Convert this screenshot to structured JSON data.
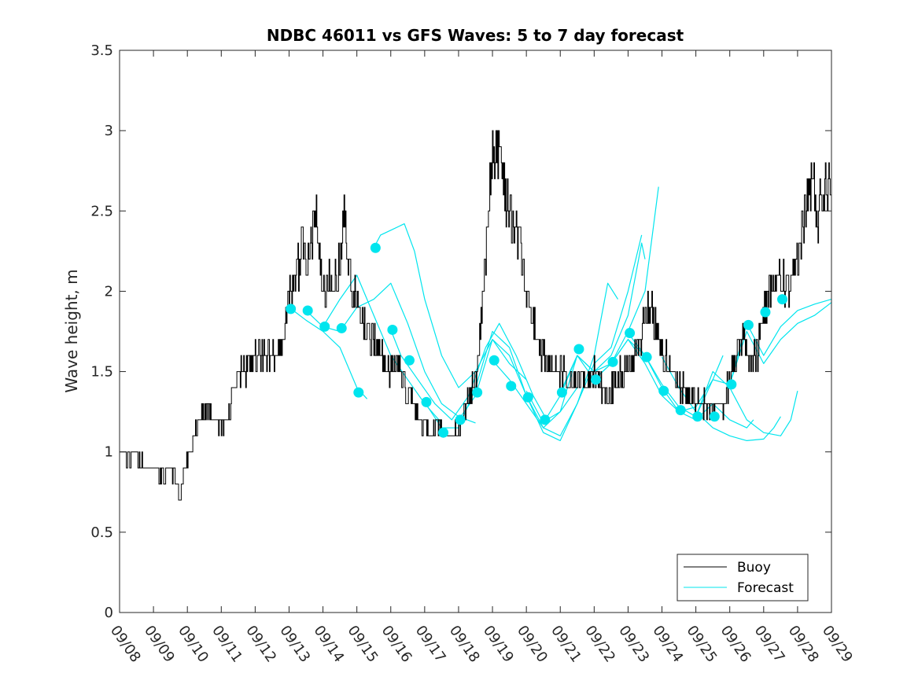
{
  "chart_data": {
    "type": "line",
    "title": "NDBC 46011 vs GFS Waves: 5 to 7 day forecast",
    "xlabel": "",
    "ylabel": "Wave height, m",
    "xlim": [
      0,
      21
    ],
    "ylim": [
      0,
      3.5
    ],
    "x_tick_labels": [
      "09/08",
      "09/09",
      "09/10",
      "09/11",
      "09/12",
      "09/13",
      "09/14",
      "09/15",
      "09/16",
      "09/17",
      "09/18",
      "09/19",
      "09/20",
      "09/21",
      "09/22",
      "09/23",
      "09/24",
      "09/25",
      "09/26",
      "09/27",
      "09/28",
      "09/29"
    ],
    "y_ticks": [
      0,
      0.5,
      1,
      1.5,
      2,
      2.5,
      3,
      3.5
    ],
    "y_tick_labels": [
      "0",
      "0.5",
      "1",
      "1.5",
      "2",
      "2.5",
      "3",
      "3.5"
    ],
    "legend": {
      "position": "bottom-right",
      "entries": [
        "Buoy",
        "Forecast"
      ]
    },
    "colors": {
      "buoy": "#000000",
      "forecast": "#00e5ee",
      "axis": "#262626"
    },
    "buoy_keypoints": [
      [
        0.0,
        1.0
      ],
      [
        0.2,
        0.95
      ],
      [
        0.4,
        1.0
      ],
      [
        0.6,
        0.92
      ],
      [
        0.8,
        0.9
      ],
      [
        1.0,
        0.9
      ],
      [
        1.2,
        0.85
      ],
      [
        1.4,
        0.9
      ],
      [
        1.6,
        0.85
      ],
      [
        1.75,
        0.75
      ],
      [
        1.9,
        0.85
      ],
      [
        2.0,
        0.95
      ],
      [
        2.2,
        1.1
      ],
      [
        2.4,
        1.25
      ],
      [
        2.6,
        1.25
      ],
      [
        2.8,
        1.22
      ],
      [
        3.0,
        1.18
      ],
      [
        3.2,
        1.2
      ],
      [
        3.4,
        1.4
      ],
      [
        3.6,
        1.5
      ],
      [
        3.8,
        1.52
      ],
      [
        4.0,
        1.6
      ],
      [
        4.2,
        1.6
      ],
      [
        4.4,
        1.62
      ],
      [
        4.6,
        1.62
      ],
      [
        4.8,
        1.7
      ],
      [
        5.0,
        2.0
      ],
      [
        5.2,
        2.1
      ],
      [
        5.4,
        2.3
      ],
      [
        5.6,
        2.2
      ],
      [
        5.8,
        2.45
      ],
      [
        6.0,
        2.0
      ],
      [
        6.2,
        2.1
      ],
      [
        6.4,
        2.05
      ],
      [
        6.6,
        2.45
      ],
      [
        6.8,
        2.1
      ],
      [
        7.0,
        1.9
      ],
      [
        7.2,
        1.85
      ],
      [
        7.4,
        1.7
      ],
      [
        7.6,
        1.65
      ],
      [
        7.8,
        1.55
      ],
      [
        8.0,
        1.5
      ],
      [
        8.2,
        1.55
      ],
      [
        8.4,
        1.4
      ],
      [
        8.6,
        1.35
      ],
      [
        8.8,
        1.2
      ],
      [
        9.0,
        1.15
      ],
      [
        9.2,
        1.1
      ],
      [
        9.4,
        1.15
      ],
      [
        9.6,
        1.05
      ],
      [
        9.8,
        1.1
      ],
      [
        10.0,
        1.15
      ],
      [
        10.2,
        1.25
      ],
      [
        10.4,
        1.4
      ],
      [
        10.6,
        1.6
      ],
      [
        10.8,
        2.2
      ],
      [
        11.0,
        2.9
      ],
      [
        11.2,
        2.85
      ],
      [
        11.4,
        2.6
      ],
      [
        11.6,
        2.45
      ],
      [
        11.8,
        2.3
      ],
      [
        12.0,
        2.0
      ],
      [
        12.2,
        1.8
      ],
      [
        12.4,
        1.65
      ],
      [
        12.6,
        1.55
      ],
      [
        12.8,
        1.5
      ],
      [
        13.0,
        1.5
      ],
      [
        13.2,
        1.45
      ],
      [
        13.4,
        1.4
      ],
      [
        13.6,
        1.45
      ],
      [
        13.8,
        1.4
      ],
      [
        14.0,
        1.5
      ],
      [
        14.2,
        1.4
      ],
      [
        14.4,
        1.35
      ],
      [
        14.6,
        1.45
      ],
      [
        14.8,
        1.5
      ],
      [
        15.0,
        1.55
      ],
      [
        15.2,
        1.6
      ],
      [
        15.4,
        1.75
      ],
      [
        15.6,
        1.95
      ],
      [
        15.8,
        1.8
      ],
      [
        16.0,
        1.6
      ],
      [
        16.2,
        1.55
      ],
      [
        16.4,
        1.45
      ],
      [
        16.6,
        1.4
      ],
      [
        16.8,
        1.35
      ],
      [
        17.0,
        1.3
      ],
      [
        17.2,
        1.3
      ],
      [
        17.4,
        1.25
      ],
      [
        17.6,
        1.25
      ],
      [
        17.8,
        1.3
      ],
      [
        18.0,
        1.45
      ],
      [
        18.2,
        1.6
      ],
      [
        18.4,
        1.7
      ],
      [
        18.6,
        1.55
      ],
      [
        18.8,
        1.6
      ],
      [
        19.0,
        1.9
      ],
      [
        19.2,
        2.0
      ],
      [
        19.4,
        2.1
      ],
      [
        19.6,
        2.05
      ],
      [
        19.8,
        2.0
      ],
      [
        20.0,
        2.2
      ],
      [
        20.2,
        2.5
      ],
      [
        20.4,
        2.7
      ],
      [
        20.6,
        2.5
      ],
      [
        20.8,
        2.7
      ],
      [
        21.0,
        2.75
      ]
    ],
    "forecast_points": [
      [
        5.05,
        1.89
      ],
      [
        5.55,
        1.88
      ],
      [
        6.05,
        1.78
      ],
      [
        6.55,
        1.77
      ],
      [
        7.05,
        1.37
      ],
      [
        7.55,
        2.27
      ],
      [
        8.05,
        1.76
      ],
      [
        8.55,
        1.57
      ],
      [
        9.05,
        1.31
      ],
      [
        9.55,
        1.12
      ],
      [
        10.05,
        1.2
      ],
      [
        10.55,
        1.37
      ],
      [
        11.05,
        1.57
      ],
      [
        11.55,
        1.41
      ],
      [
        12.05,
        1.34
      ],
      [
        12.55,
        1.2
      ],
      [
        13.05,
        1.37
      ],
      [
        13.55,
        1.64
      ],
      [
        14.05,
        1.45
      ],
      [
        14.55,
        1.56
      ],
      [
        15.05,
        1.74
      ],
      [
        15.55,
        1.59
      ],
      [
        16.05,
        1.38
      ],
      [
        16.55,
        1.26
      ],
      [
        17.05,
        1.22
      ],
      [
        17.55,
        1.22
      ],
      [
        18.05,
        1.42
      ],
      [
        18.55,
        1.79
      ],
      [
        19.05,
        1.87
      ],
      [
        19.55,
        1.95
      ]
    ],
    "forecast_traces": [
      [
        [
          5.0,
          1.9
        ],
        [
          5.5,
          1.82
        ],
        [
          6.0,
          1.75
        ],
        [
          6.5,
          1.65
        ],
        [
          7.0,
          1.4
        ],
        [
          7.3,
          1.33
        ]
      ],
      [
        [
          5.5,
          1.88
        ],
        [
          6.0,
          1.78
        ],
        [
          6.5,
          1.95
        ],
        [
          7.0,
          2.1
        ],
        [
          7.5,
          1.85
        ],
        [
          8.0,
          1.6
        ],
        [
          8.5,
          1.45
        ],
        [
          9.0,
          1.3
        ],
        [
          9.5,
          1.18
        ]
      ],
      [
        [
          6.0,
          1.78
        ],
        [
          6.5,
          1.75
        ],
        [
          7.0,
          1.9
        ],
        [
          7.5,
          1.95
        ],
        [
          8.0,
          2.05
        ],
        [
          8.5,
          1.8
        ],
        [
          9.0,
          1.5
        ],
        [
          9.5,
          1.3
        ],
        [
          10.0,
          1.22
        ],
        [
          10.5,
          1.18
        ]
      ],
      [
        [
          7.5,
          2.27
        ],
        [
          7.7,
          2.35
        ],
        [
          8.0,
          2.38
        ],
        [
          8.4,
          2.42
        ],
        [
          8.7,
          2.25
        ],
        [
          9.0,
          1.95
        ],
        [
          9.5,
          1.6
        ],
        [
          10.0,
          1.4
        ],
        [
          10.5,
          1.5
        ],
        [
          11.0,
          1.7
        ],
        [
          11.5,
          1.55
        ],
        [
          12.0,
          1.45
        ]
      ],
      [
        [
          8.0,
          1.76
        ],
        [
          8.3,
          1.6
        ],
        [
          8.8,
          1.45
        ],
        [
          9.3,
          1.3
        ],
        [
          9.8,
          1.2
        ],
        [
          10.3,
          1.35
        ],
        [
          10.8,
          1.65
        ],
        [
          11.2,
          1.8
        ],
        [
          11.7,
          1.6
        ],
        [
          12.2,
          1.35
        ],
        [
          12.6,
          1.2
        ],
        [
          13.0,
          1.25
        ],
        [
          13.5,
          1.4
        ]
      ],
      [
        [
          9.0,
          1.31
        ],
        [
          9.5,
          1.15
        ],
        [
          10.0,
          1.15
        ],
        [
          10.5,
          1.4
        ],
        [
          11.0,
          1.75
        ],
        [
          11.5,
          1.65
        ],
        [
          12.0,
          1.35
        ],
        [
          12.5,
          1.15
        ],
        [
          13.0,
          1.1
        ],
        [
          13.5,
          1.3
        ],
        [
          14.0,
          1.6
        ],
        [
          14.4,
          2.05
        ],
        [
          14.7,
          1.95
        ]
      ],
      [
        [
          10.0,
          1.2
        ],
        [
          10.5,
          1.35
        ],
        [
          11.0,
          1.7
        ],
        [
          11.5,
          1.6
        ],
        [
          12.0,
          1.35
        ],
        [
          12.5,
          1.12
        ],
        [
          13.0,
          1.07
        ],
        [
          13.5,
          1.3
        ],
        [
          14.0,
          1.55
        ],
        [
          14.5,
          1.65
        ],
        [
          15.0,
          2.0
        ],
        [
          15.4,
          2.35
        ]
      ],
      [
        [
          11.0,
          1.57
        ],
        [
          11.5,
          1.45
        ],
        [
          12.0,
          1.3
        ],
        [
          12.5,
          1.15
        ],
        [
          13.0,
          1.25
        ],
        [
          13.5,
          1.6
        ],
        [
          14.0,
          1.5
        ],
        [
          14.5,
          1.6
        ],
        [
          15.0,
          1.85
        ],
        [
          15.4,
          2.3
        ],
        [
          15.5,
          2.2
        ]
      ],
      [
        [
          12.0,
          1.38
        ],
        [
          12.5,
          1.18
        ],
        [
          13.0,
          1.35
        ],
        [
          13.5,
          1.6
        ],
        [
          14.0,
          1.5
        ],
        [
          14.5,
          1.55
        ],
        [
          15.0,
          1.75
        ],
        [
          15.5,
          2.0
        ],
        [
          15.9,
          2.65
        ]
      ],
      [
        [
          13.0,
          1.37
        ],
        [
          13.5,
          1.6
        ],
        [
          14.0,
          1.45
        ],
        [
          14.5,
          1.55
        ],
        [
          15.0,
          1.7
        ],
        [
          15.5,
          1.55
        ],
        [
          16.0,
          1.35
        ],
        [
          16.5,
          1.25
        ],
        [
          17.0,
          1.28
        ],
        [
          17.5,
          1.45
        ],
        [
          17.8,
          1.6
        ]
      ],
      [
        [
          14.0,
          1.45
        ],
        [
          14.5,
          1.55
        ],
        [
          15.0,
          1.7
        ],
        [
          15.5,
          1.6
        ],
        [
          16.0,
          1.4
        ],
        [
          16.5,
          1.25
        ],
        [
          17.0,
          1.2
        ],
        [
          17.5,
          1.3
        ],
        [
          18.0,
          1.2
        ],
        [
          18.5,
          1.15
        ],
        [
          18.7,
          1.2
        ]
      ],
      [
        [
          15.0,
          1.74
        ],
        [
          15.5,
          1.6
        ],
        [
          16.0,
          1.42
        ],
        [
          16.5,
          1.28
        ],
        [
          17.0,
          1.22
        ],
        [
          17.5,
          1.5
        ],
        [
          18.0,
          1.4
        ],
        [
          18.5,
          1.2
        ],
        [
          19.0,
          1.12
        ],
        [
          19.5,
          1.1
        ],
        [
          19.8,
          1.2
        ],
        [
          20.0,
          1.38
        ]
      ],
      [
        [
          16.0,
          1.59
        ],
        [
          16.5,
          1.4
        ],
        [
          17.0,
          1.25
        ],
        [
          17.5,
          1.15
        ],
        [
          18.0,
          1.1
        ],
        [
          18.5,
          1.07
        ],
        [
          19.0,
          1.08
        ],
        [
          19.3,
          1.15
        ],
        [
          19.5,
          1.22
        ]
      ],
      [
        [
          17.0,
          1.22
        ],
        [
          17.5,
          1.45
        ],
        [
          18.0,
          1.42
        ],
        [
          18.5,
          1.8
        ],
        [
          19.0,
          1.6
        ],
        [
          19.5,
          1.78
        ],
        [
          20.0,
          1.88
        ],
        [
          20.5,
          1.92
        ],
        [
          21.0,
          1.95
        ]
      ],
      [
        [
          18.0,
          1.42
        ],
        [
          18.5,
          1.75
        ],
        [
          19.0,
          1.55
        ],
        [
          19.5,
          1.7
        ],
        [
          20.0,
          1.8
        ],
        [
          20.5,
          1.85
        ],
        [
          21.0,
          1.93
        ]
      ]
    ]
  }
}
